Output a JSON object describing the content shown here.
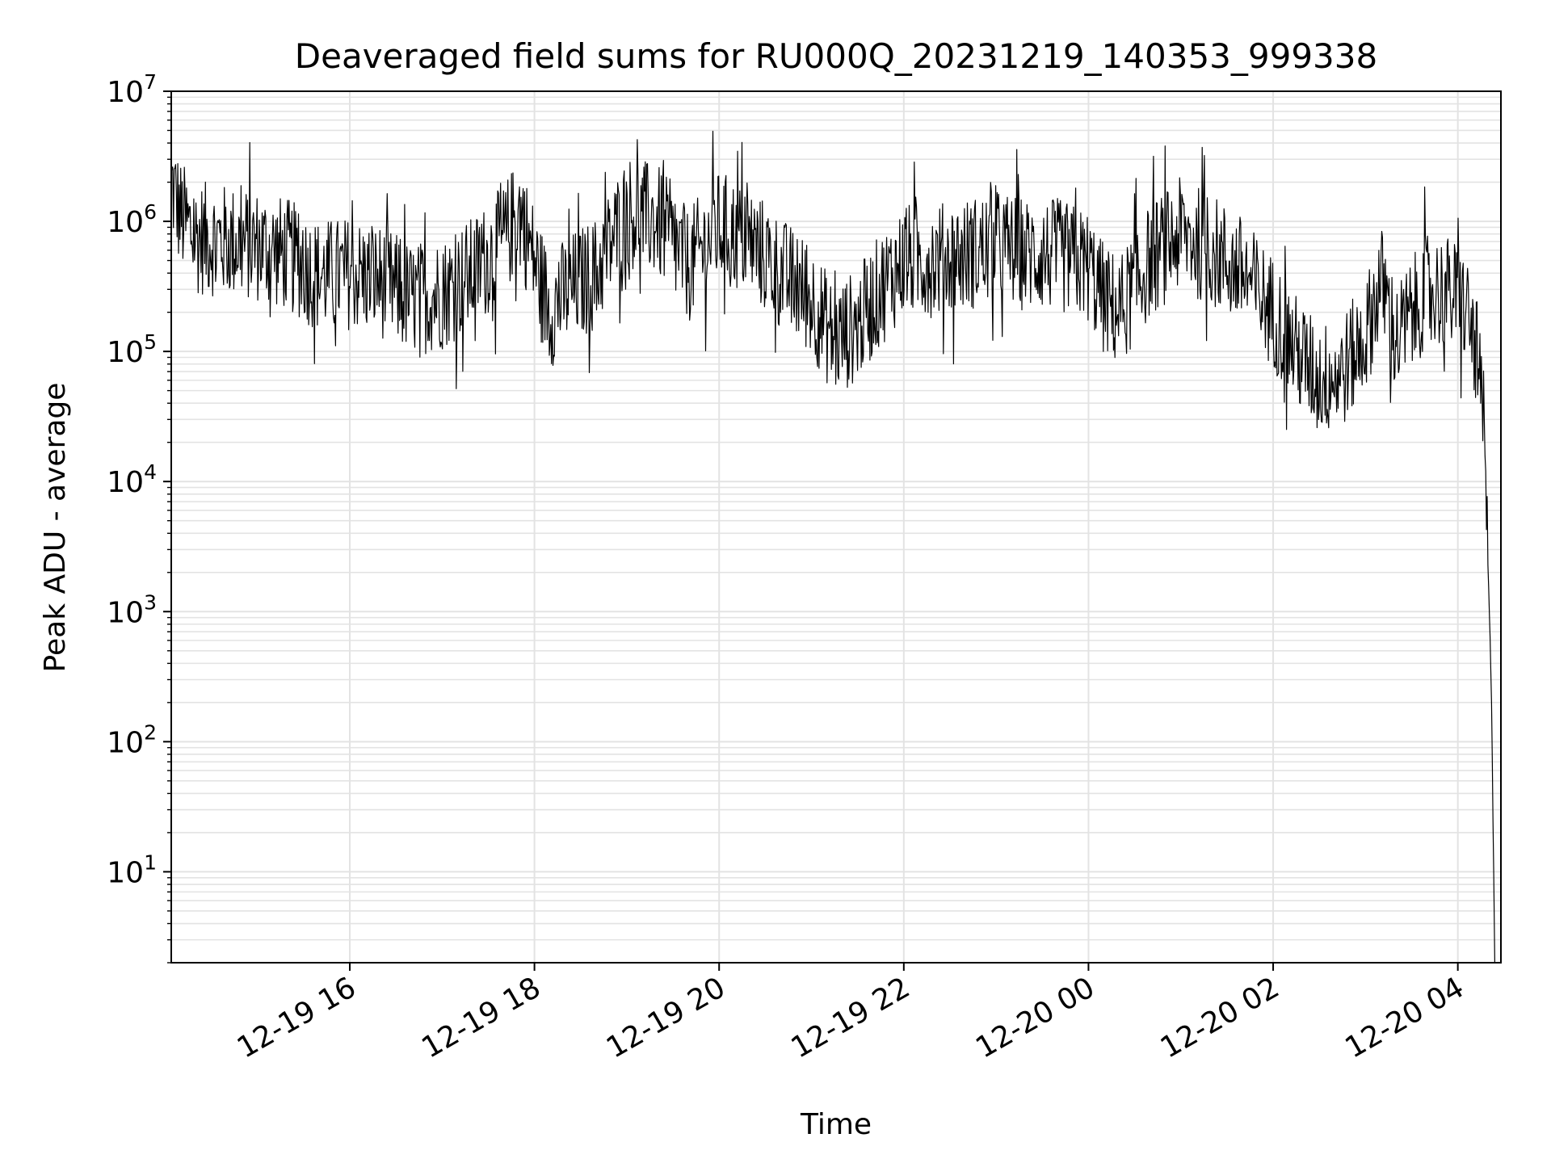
{
  "chart_data": {
    "type": "line",
    "title": "Deaveraged field sums for RU000Q_20231219_140353_999338",
    "xlabel": "Time",
    "ylabel": "Peak ADU - average",
    "yscale": "log",
    "xlim": [
      "2023-12-19 14:04",
      "2023-12-20 04:28"
    ],
    "ylim": [
      2,
      10000000
    ],
    "x_ticks": [
      {
        "value": "2023-12-19 16:00",
        "label": "12-19 16"
      },
      {
        "value": "2023-12-19 18:00",
        "label": "12-19 18"
      },
      {
        "value": "2023-12-19 20:00",
        "label": "12-19 20"
      },
      {
        "value": "2023-12-19 22:00",
        "label": "12-19 22"
      },
      {
        "value": "2023-12-20 00:00",
        "label": "12-20 00"
      },
      {
        "value": "2023-12-20 02:00",
        "label": "12-20 02"
      },
      {
        "value": "2023-12-20 04:00",
        "label": "12-20 04"
      }
    ],
    "y_ticks": [
      {
        "value": 10,
        "base": "10",
        "exp": "1"
      },
      {
        "value": 100,
        "base": "10",
        "exp": "2"
      },
      {
        "value": 1000,
        "base": "10",
        "exp": "3"
      },
      {
        "value": 10000,
        "base": "10",
        "exp": "4"
      },
      {
        "value": 100000,
        "base": "10",
        "exp": "5"
      },
      {
        "value": 1000000,
        "base": "10",
        "exp": "6"
      },
      {
        "value": 10000000,
        "base": "10",
        "exp": "7"
      }
    ],
    "grid": true,
    "line_color": "#000000",
    "series": [
      {
        "x": [
          "2023-12-19 14:04",
          "2023-12-19 14:10",
          "2023-12-19 14:20",
          "2023-12-19 14:40",
          "2023-12-19 15:00",
          "2023-12-19 15:20",
          "2023-12-19 15:40",
          "2023-12-19 16:00",
          "2023-12-19 16:20",
          "2023-12-19 16:40",
          "2023-12-19 17:00",
          "2023-12-19 17:20",
          "2023-12-19 17:40",
          "2023-12-19 17:50",
          "2023-12-19 18:00",
          "2023-12-19 18:10",
          "2023-12-19 18:20",
          "2023-12-19 18:40",
          "2023-12-19 19:00",
          "2023-12-19 19:20",
          "2023-12-19 19:40",
          "2023-12-19 20:00",
          "2023-12-19 20:20",
          "2023-12-19 20:40",
          "2023-12-19 21:00",
          "2023-12-19 21:15",
          "2023-12-19 21:30",
          "2023-12-19 21:45",
          "2023-12-19 22:00",
          "2023-12-19 22:20",
          "2023-12-19 22:40",
          "2023-12-19 23:00",
          "2023-12-19 23:20",
          "2023-12-19 23:40",
          "2023-12-20 00:00",
          "2023-12-20 00:10",
          "2023-12-20 00:20",
          "2023-12-20 00:40",
          "2023-12-20 01:00",
          "2023-12-20 01:20",
          "2023-12-20 01:40",
          "2023-12-20 02:00",
          "2023-12-20 02:15",
          "2023-12-20 02:30",
          "2023-12-20 02:45",
          "2023-12-20 03:00",
          "2023-12-20 03:10",
          "2023-12-20 03:20",
          "2023-12-20 03:40",
          "2023-12-20 03:55",
          "2023-12-20 04:05",
          "2023-12-20 04:12",
          "2023-12-20 04:17",
          "2023-12-20 04:20",
          "2023-12-20 04:22",
          "2023-12-20 04:24"
        ],
        "values": [
          2000000,
          1100000,
          750000,
          700000,
          650000,
          550000,
          380000,
          400000,
          350000,
          250000,
          280000,
          400000,
          700000,
          1200000,
          500000,
          200000,
          280000,
          400000,
          1200000,
          1000000,
          450000,
          900000,
          700000,
          400000,
          250000,
          120000,
          160000,
          300000,
          500000,
          500000,
          550000,
          650000,
          550000,
          550000,
          450000,
          250000,
          200000,
          500000,
          800000,
          600000,
          400000,
          200000,
          100000,
          60000,
          70000,
          130000,
          350000,
          120000,
          300000,
          280000,
          220000,
          100000,
          25000,
          1500,
          200,
          2
        ]
      }
    ]
  }
}
